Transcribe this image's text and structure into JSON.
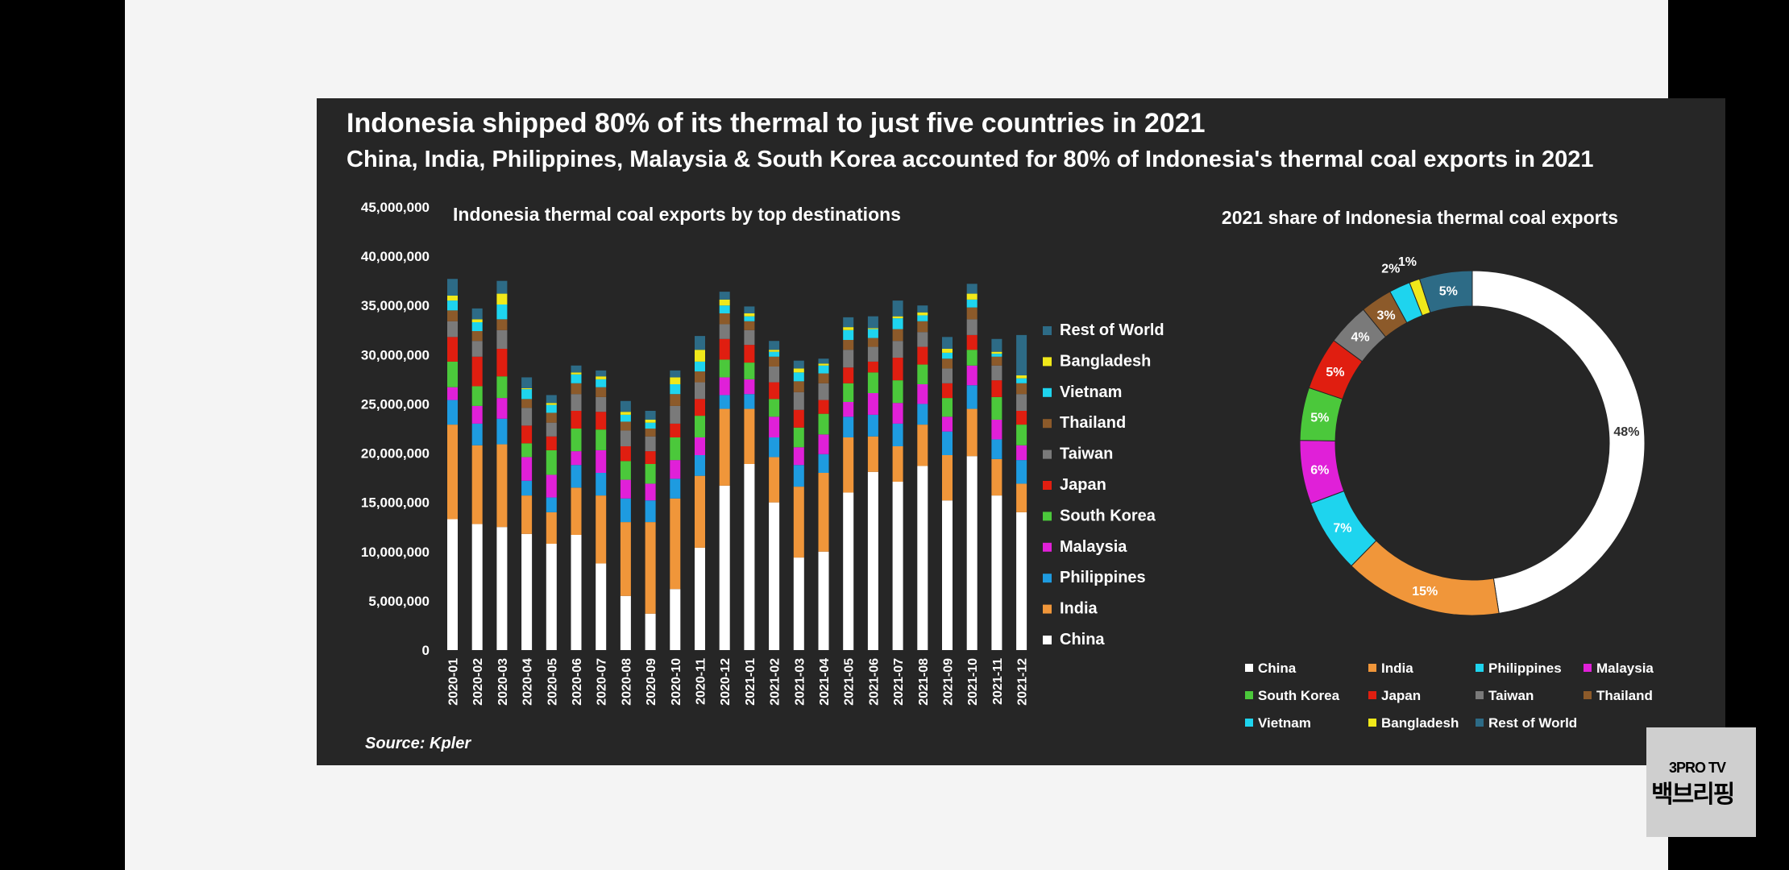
{
  "title": "Indonesia shipped 80% of its thermal to just five countries in 2021",
  "subtitle": "China, India, Philippines, Malaysia & South Korea accounted for 80% of Indonesia's thermal coal exports in 2021",
  "source": "Source: Kpler",
  "watermark": {
    "line1": "3PRO TV",
    "line2": "백브리핑"
  },
  "chart_data": [
    {
      "type": "bar",
      "stacked": true,
      "title": "Indonesia thermal coal exports by top destinations",
      "xlabel": "",
      "ylabel": "",
      "ylim": [
        0,
        45000000
      ],
      "y_ticks": [
        "0",
        "5,000,000",
        "10,000,000",
        "15,000,000",
        "20,000,000",
        "25,000,000",
        "30,000,000",
        "35,000,000",
        "40,000,000",
        "45,000,000"
      ],
      "legend_position": "right",
      "categories": [
        "2020-01",
        "2020-02",
        "2020-03",
        "2020-04",
        "2020-05",
        "2020-06",
        "2020-07",
        "2020-08",
        "2020-09",
        "2020-10",
        "2020-11",
        "2020-12",
        "2021-01",
        "2021-02",
        "2021-03",
        "2021-04",
        "2021-05",
        "2021-06",
        "2021-07",
        "2021-08",
        "2021-09",
        "2021-10",
        "2021-11",
        "2021-12"
      ],
      "series": [
        {
          "name": "China",
          "color": "#ffffff",
          "values": [
            13300000,
            12800000,
            12500000,
            11800000,
            10800000,
            11700000,
            8800000,
            5500000,
            3700000,
            6200000,
            10400000,
            16700000,
            18900000,
            15000000,
            9400000,
            10000000,
            16000000,
            18100000,
            17100000,
            18700000,
            15200000,
            19700000,
            15700000,
            14000000
          ]
        },
        {
          "name": "India",
          "color": "#f0963a",
          "values": [
            9600000,
            8000000,
            8400000,
            3900000,
            3200000,
            4800000,
            6900000,
            7500000,
            9300000,
            9200000,
            7300000,
            7800000,
            5600000,
            4600000,
            7200000,
            8000000,
            5600000,
            3600000,
            3600000,
            4200000,
            4600000,
            4800000,
            3700000,
            2900000
          ]
        },
        {
          "name": "Philippines",
          "color": "#1e9be0",
          "values": [
            2500000,
            2200000,
            2600000,
            1500000,
            1500000,
            2300000,
            2300000,
            2400000,
            2200000,
            2000000,
            2100000,
            1400000,
            1500000,
            2000000,
            2200000,
            1900000,
            2100000,
            2200000,
            2300000,
            2100000,
            2400000,
            2400000,
            2000000,
            2400000
          ]
        },
        {
          "name": "Malaysia",
          "color": "#e020d8",
          "values": [
            1300000,
            1800000,
            2100000,
            2400000,
            2300000,
            1400000,
            2300000,
            1900000,
            1700000,
            1900000,
            1800000,
            1800000,
            1500000,
            2100000,
            1800000,
            2000000,
            1500000,
            2200000,
            2100000,
            2000000,
            1500000,
            2000000,
            2000000,
            1500000
          ]
        },
        {
          "name": "South Korea",
          "color": "#4bc83b",
          "values": [
            2600000,
            2000000,
            2200000,
            1400000,
            2500000,
            2300000,
            2100000,
            1900000,
            2000000,
            2300000,
            2200000,
            1800000,
            1700000,
            1800000,
            2000000,
            2100000,
            1900000,
            2100000,
            2300000,
            2000000,
            1900000,
            1600000,
            2300000,
            2100000
          ]
        },
        {
          "name": "Japan",
          "color": "#e01e10",
          "values": [
            2500000,
            3000000,
            2800000,
            1800000,
            1400000,
            1800000,
            1800000,
            1500000,
            1300000,
            1400000,
            1700000,
            2100000,
            1800000,
            1700000,
            1800000,
            1400000,
            1600000,
            1100000,
            2300000,
            1800000,
            1500000,
            1500000,
            1700000,
            1400000
          ]
        },
        {
          "name": "Taiwan",
          "color": "#7a7a7a",
          "values": [
            1600000,
            1600000,
            1900000,
            1800000,
            1400000,
            1700000,
            1500000,
            1600000,
            1500000,
            1800000,
            1700000,
            1500000,
            1500000,
            1600000,
            1800000,
            1700000,
            1800000,
            1500000,
            1700000,
            1500000,
            1500000,
            1600000,
            1500000,
            1700000
          ]
        },
        {
          "name": "Thailand",
          "color": "#8c5a2a",
          "values": [
            1100000,
            1000000,
            1100000,
            900000,
            1000000,
            1100000,
            1000000,
            900000,
            800000,
            1200000,
            1100000,
            1100000,
            900000,
            1000000,
            1100000,
            1000000,
            1000000,
            900000,
            1200000,
            1100000,
            1000000,
            1200000,
            900000,
            1100000
          ]
        },
        {
          "name": "Vietnam",
          "color": "#1ed4ee",
          "values": [
            1000000,
            900000,
            1500000,
            1000000,
            800000,
            900000,
            800000,
            700000,
            600000,
            1000000,
            1000000,
            800000,
            500000,
            500000,
            900000,
            800000,
            1000000,
            900000,
            1100000,
            600000,
            600000,
            800000,
            300000,
            500000
          ]
        },
        {
          "name": "Bangladesh",
          "color": "#f0e81a",
          "values": [
            500000,
            300000,
            1100000,
            100000,
            200000,
            200000,
            300000,
            300000,
            300000,
            700000,
            1200000,
            600000,
            300000,
            200000,
            400000,
            200000,
            300000,
            100000,
            200000,
            300000,
            400000,
            600000,
            200000,
            300000
          ]
        },
        {
          "name": "Rest of World",
          "color": "#2d6b86",
          "values": [
            1700000,
            1100000,
            1300000,
            1100000,
            800000,
            700000,
            600000,
            1100000,
            900000,
            700000,
            1400000,
            800000,
            700000,
            900000,
            800000,
            500000,
            1000000,
            1200000,
            1600000,
            700000,
            1200000,
            1000000,
            1300000,
            4100000
          ]
        }
      ]
    },
    {
      "type": "pie",
      "donut": true,
      "title": "2021 share of Indonesia thermal coal exports",
      "legend_position": "bottom",
      "slices": [
        {
          "name": "China",
          "value": 48,
          "label": "48%",
          "color": "#ffffff"
        },
        {
          "name": "India",
          "value": 15,
          "label": "15%",
          "color": "#f0963a"
        },
        {
          "name": "Philippines",
          "value": 7,
          "label": "7%",
          "color": "#1ed4ee"
        },
        {
          "name": "Malaysia",
          "value": 6,
          "label": "6%",
          "color": "#e020d8"
        },
        {
          "name": "South Korea",
          "value": 5,
          "label": "5%",
          "color": "#4bc83b"
        },
        {
          "name": "Japan",
          "value": 5,
          "label": "5%",
          "color": "#e01e10"
        },
        {
          "name": "Taiwan",
          "value": 4,
          "label": "4%",
          "color": "#7a7a7a"
        },
        {
          "name": "Thailand",
          "value": 3,
          "label": "3%",
          "color": "#8c5a2a"
        },
        {
          "name": "Vietnam",
          "value": 2,
          "label": "2%",
          "color": "#1ed4ee"
        },
        {
          "name": "Bangladesh",
          "value": 1,
          "label": "1%",
          "color": "#f0e81a"
        },
        {
          "name": "Rest of World",
          "value": 5,
          "label": "5%",
          "color": "#2d6b86"
        }
      ]
    }
  ]
}
